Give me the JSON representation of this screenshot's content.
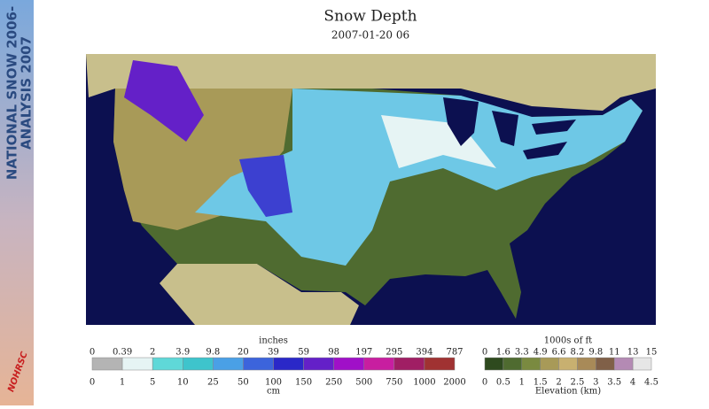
{
  "sidebar": {
    "line1": "NATIONAL SNOW 2006-",
    "line2": "ANALYSIS 2007",
    "logo": "NOHRSC"
  },
  "header": {
    "title": "Snow Depth",
    "date": "2007-01-20 06"
  },
  "snow_legend": {
    "top_unit": "inches",
    "bottom_unit": "cm",
    "top_labels": [
      "0",
      "0.39",
      "2",
      "3.9",
      "9.8",
      "20",
      "39",
      "59",
      "98",
      "197",
      "295",
      "394",
      "787"
    ],
    "bottom_labels": [
      "0",
      "1",
      "5",
      "10",
      "25",
      "50",
      "100",
      "150",
      "250",
      "500",
      "750",
      "1000",
      "2000"
    ],
    "colors": [
      "#b4b4b4",
      "#e6f4f4",
      "#5fd8d8",
      "#3ec4cc",
      "#4aa0e6",
      "#3c64dc",
      "#2a28c8",
      "#6420c8",
      "#a010c8",
      "#c81ea0",
      "#a01e64",
      "#a03232"
    ]
  },
  "elevation_legend": {
    "top_unit": "1000s of ft",
    "bottom_unit": "Elevation (km)",
    "top_labels": [
      "0",
      "1.6",
      "3.3",
      "4.9",
      "6.6",
      "8.2",
      "9.8",
      "11",
      "13",
      "15"
    ],
    "bottom_labels": [
      "0",
      "0.5",
      "1",
      "1.5",
      "2",
      "2.5",
      "3",
      "3.5",
      "4",
      "4.5"
    ],
    "colors": [
      "#2e4a1e",
      "#4f6b30",
      "#7a8a40",
      "#a89a58",
      "#c8b070",
      "#a88a58",
      "#806048",
      "#b48ab4",
      "#e6e6e6"
    ]
  }
}
